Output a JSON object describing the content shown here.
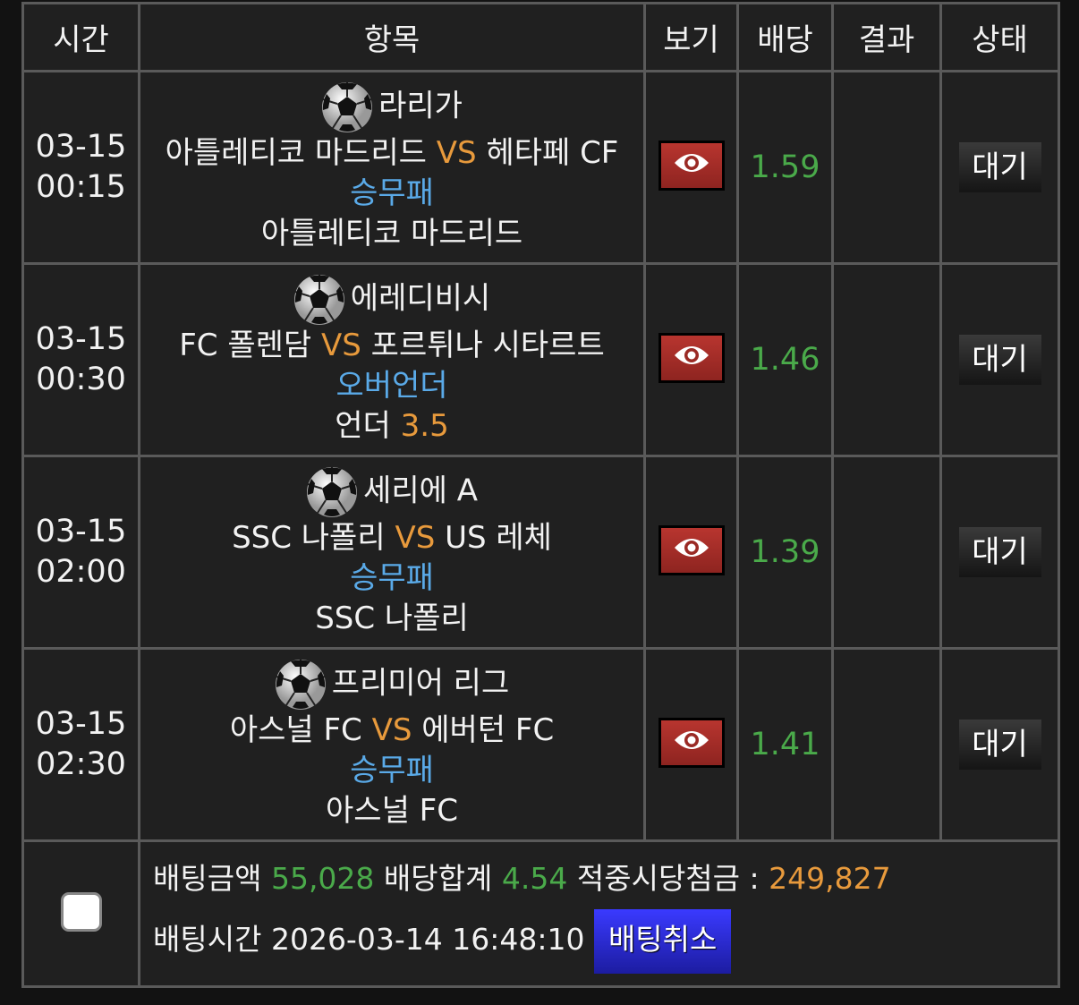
{
  "header": {
    "time": "시간",
    "item": "항목",
    "view": "보기",
    "odds": "배당",
    "result": "결과",
    "status": "상태"
  },
  "bets": [
    {
      "date": "03-15",
      "time": "00:15",
      "league": "라리가",
      "home": "아틀레티코 마드리드",
      "vs": "VS",
      "away": "헤타페 CF",
      "market": "승무패",
      "pick": "아틀레티코 마드리드",
      "pick_value": "",
      "odds": "1.59",
      "result": "",
      "status": "대기"
    },
    {
      "date": "03-15",
      "time": "00:30",
      "league": "에레디비시",
      "home": "FC 폴렌담",
      "vs": "VS",
      "away": "포르튀나 시타르트",
      "market": "오버언더",
      "pick": "언더",
      "pick_value": "3.5",
      "odds": "1.46",
      "result": "",
      "status": "대기"
    },
    {
      "date": "03-15",
      "time": "02:00",
      "league": "세리에 A",
      "home": "SSC 나폴리",
      "vs": "VS",
      "away": "US 레체",
      "market": "승무패",
      "pick": "SSC 나폴리",
      "pick_value": "",
      "odds": "1.39",
      "result": "",
      "status": "대기"
    },
    {
      "date": "03-15",
      "time": "02:30",
      "league": "프리미어 리그",
      "home": "아스널 FC",
      "vs": "VS",
      "away": "에버턴 FC",
      "market": "승무패",
      "pick": "아스널 FC",
      "pick_value": "",
      "odds": "1.41",
      "result": "",
      "status": "대기"
    }
  ],
  "summary": {
    "amount_label": "배팅금액",
    "amount": "55,028",
    "odds_label": "배당합계",
    "odds_total": "4.54",
    "payout_label": "적중시당첨금 :",
    "payout": "249,827",
    "time_label": "배팅시간",
    "bet_time": "2026-03-14 16:48:10",
    "cancel_label": "배팅취소"
  },
  "icons": {
    "sport": "soccer-ball-icon",
    "view": "eye-icon"
  },
  "colors": {
    "vs": "#e89a3c",
    "market": "#5aaae8",
    "odds": "#4aaa4a",
    "view_button": "#a8302a",
    "cancel_button": "#2a2ae0"
  }
}
